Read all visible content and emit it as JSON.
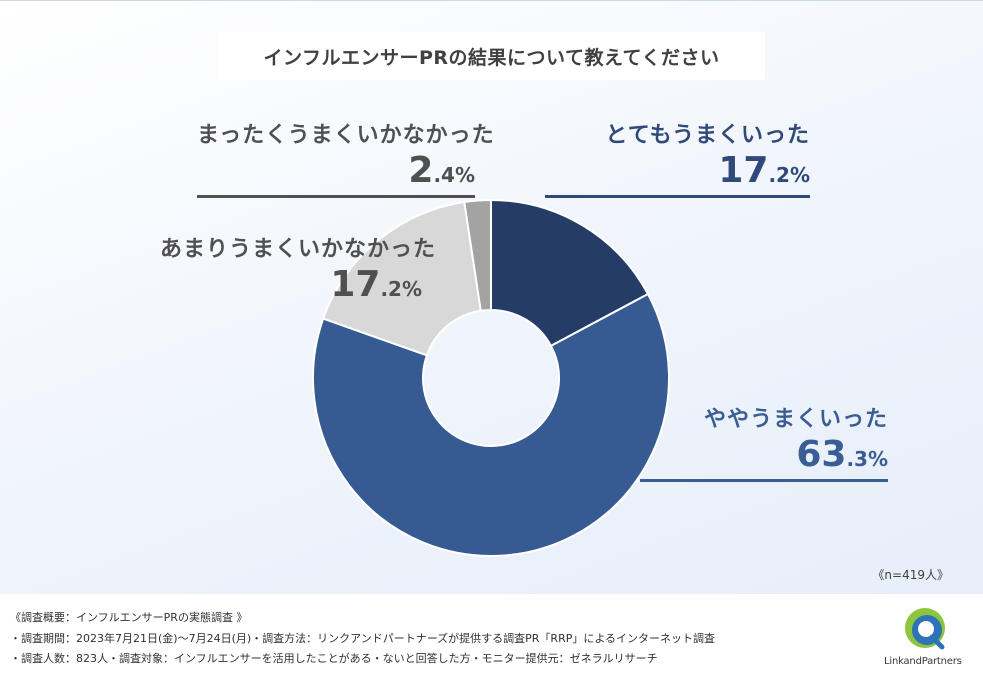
{
  "chart_data": {
    "type": "pie",
    "title": "インフルエンサーPRの結果について教えてください",
    "note": "《n=419人》",
    "slices": [
      {
        "label": "とてもうまくいった",
        "pct_big": "17",
        "pct_small": ".2%",
        "value": 17.2,
        "color": "#243c66",
        "text_color": "#2f4a78"
      },
      {
        "label": "ややうまくいった",
        "pct_big": "63",
        "pct_small": ".3%",
        "value": 63.3,
        "color": "#365b93",
        "text_color": "#3a5d93"
      },
      {
        "label": "あまりうまくいかなかった",
        "pct_big": "17",
        "pct_small": ".2%",
        "value": 17.2,
        "color": "#d8d8d8",
        "text_color": "#505050"
      },
      {
        "label": "まったくうまくいかなかった",
        "pct_big": "2",
        "pct_small": ".4%",
        "value": 2.4,
        "color": "#a3a3a3",
        "text_color": "#505050"
      }
    ]
  },
  "footer": {
    "line1": "《調査概要：インフルエンサーPRの実態調査 》",
    "line2": "・調査期間：2023年7月21日(金)～7月24日(月)・調査方法：リンクアンドパートナーズが提供する調査PR「RRP」によるインターネット調査",
    "line3": "・調査人数：823人・調査対象：インフルエンサーを活用したことがある・ないと回答した方・モニター提供元：ゼネラルリサーチ"
  },
  "logo": {
    "text": "LinkandPartners",
    "icon": "link-and-partners-logo-icon"
  }
}
